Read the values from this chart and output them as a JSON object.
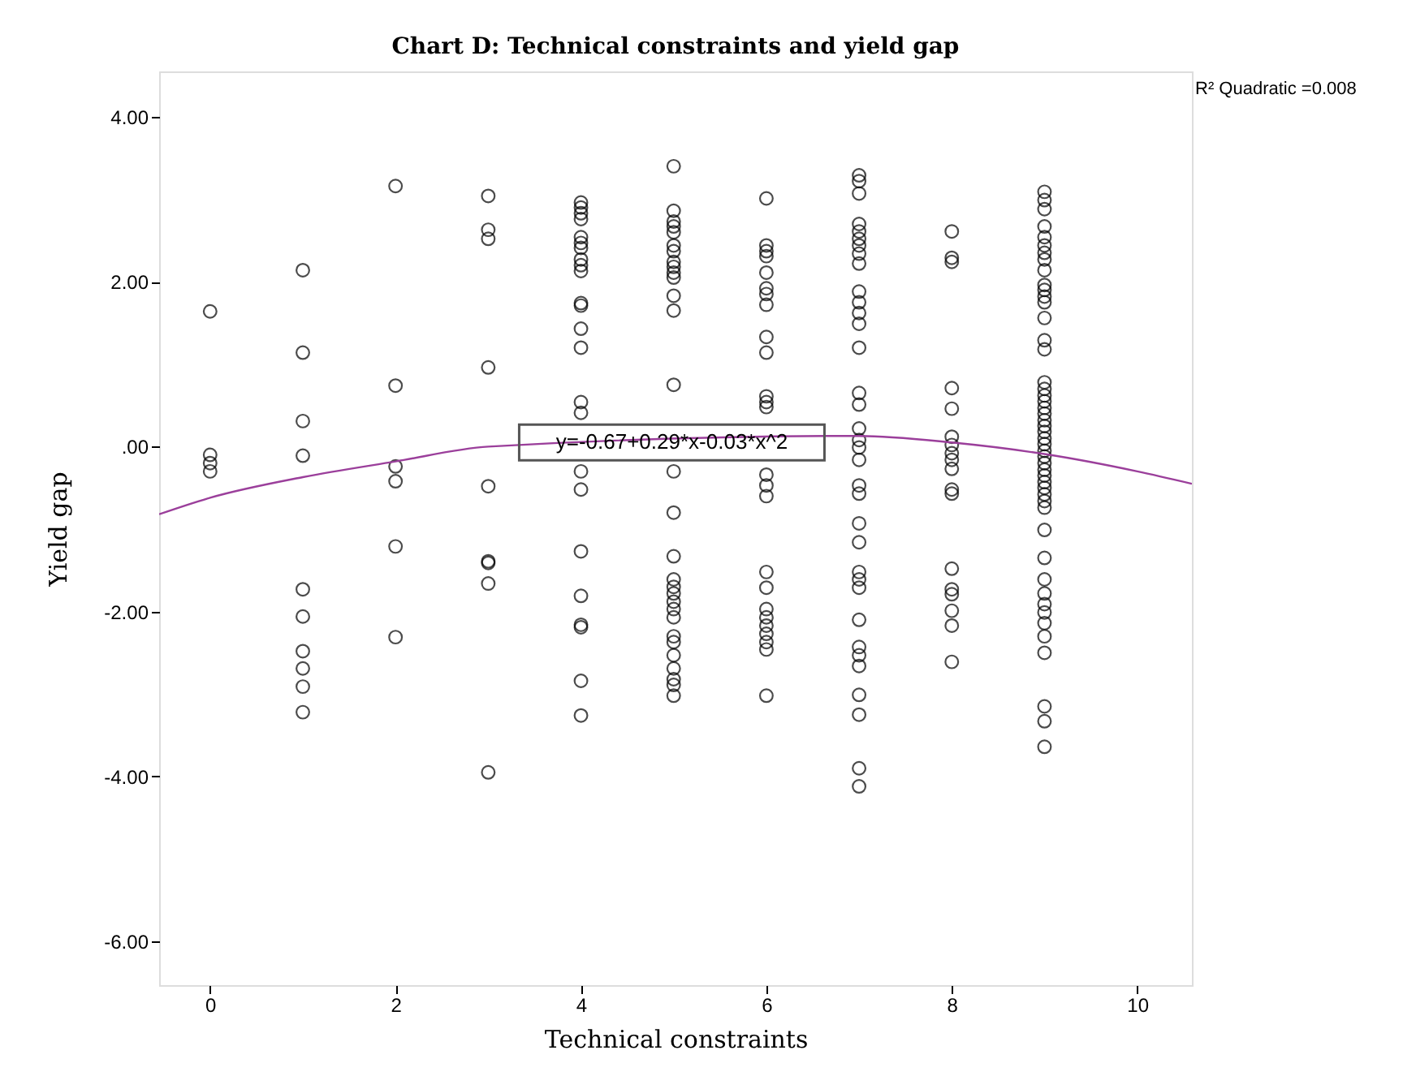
{
  "chart_data": {
    "type": "scatter",
    "title": "Chart D: Technical constraints and yield gap",
    "xlabel": "Technical constraints",
    "ylabel": "Yield gap",
    "xlim": [
      -0.55,
      10.59
    ],
    "ylim": [
      -6.53,
      4.55
    ],
    "xticks": [
      0,
      2,
      4,
      6,
      8,
      10
    ],
    "yticks": [
      {
        "value": -6,
        "label": "-6.00"
      },
      {
        "value": -4,
        "label": "-4.00"
      },
      {
        "value": -2,
        "label": "-2.00"
      },
      {
        "value": 0,
        "label": ".00"
      },
      {
        "value": 2,
        "label": "2.00"
      },
      {
        "value": 4,
        "label": "4.00"
      }
    ],
    "grid": false,
    "marker": "circle",
    "annotations": [
      {
        "text": "y=-0.67+0.29*x-0.03*x^2",
        "x": 4.98,
        "y": 0.05
      },
      "R² Quadratic =0.008"
    ],
    "series": [
      {
        "color": "#000000",
        "x": [
          0,
          0,
          0,
          0,
          1,
          1,
          1,
          1,
          1,
          1,
          1,
          1,
          1,
          1,
          2,
          2,
          2,
          2,
          2,
          2,
          3,
          3,
          3,
          3,
          3,
          3,
          3,
          3,
          3,
          4,
          4,
          4,
          4,
          4,
          4,
          4,
          4,
          4,
          4,
          4,
          4,
          4,
          4,
          4,
          4,
          4,
          4,
          4,
          4,
          4,
          4,
          4,
          4,
          5,
          5,
          5,
          5,
          5,
          5,
          5,
          5,
          5,
          5,
          5,
          5,
          5,
          5,
          5,
          5,
          5,
          5,
          5,
          5,
          5,
          5,
          5,
          5,
          5,
          5,
          5,
          5,
          5,
          5,
          6,
          6,
          6,
          6,
          6,
          6,
          6,
          6,
          6,
          6,
          6,
          6,
          6,
          6,
          6,
          6,
          6,
          6,
          6,
          6,
          6,
          6,
          6,
          6,
          6,
          7,
          7,
          7,
          7,
          7,
          7,
          7,
          7,
          7,
          7,
          7,
          7,
          7,
          7,
          7,
          7,
          7,
          7,
          7,
          7,
          7,
          7,
          7,
          7,
          7,
          7,
          7,
          7,
          7,
          7,
          7,
          7,
          7,
          7,
          7,
          8,
          8,
          8,
          8,
          8,
          8,
          8,
          8,
          8,
          8,
          8,
          8,
          8,
          8,
          8,
          8,
          8,
          8,
          9,
          9,
          9,
          9,
          9,
          9,
          9,
          9,
          9,
          9,
          9,
          9,
          9,
          9,
          9,
          9,
          9,
          9,
          9,
          9,
          9,
          9,
          9,
          9,
          9,
          9,
          9,
          9,
          9,
          9,
          9,
          9,
          9,
          9,
          9,
          9,
          9,
          9,
          9,
          9,
          9,
          9,
          9,
          9,
          9,
          9,
          9,
          9,
          9
        ],
        "values": [
          1.64,
          -0.1,
          -0.2,
          -0.3,
          2.14,
          1.14,
          0.31,
          -0.11,
          -1.73,
          -2.06,
          -2.48,
          -2.69,
          -2.91,
          -3.22,
          3.16,
          0.74,
          -0.24,
          -0.42,
          -1.21,
          -2.31,
          3.04,
          2.63,
          2.52,
          0.96,
          -0.48,
          -1.39,
          -1.41,
          -1.66,
          -3.95,
          2.96,
          2.9,
          2.83,
          2.76,
          2.54,
          2.47,
          2.41,
          2.27,
          2.2,
          2.13,
          1.74,
          1.71,
          1.43,
          1.2,
          0.54,
          0.41,
          -0.3,
          -0.52,
          -1.27,
          -1.81,
          -2.16,
          -2.19,
          -2.84,
          -3.26,
          3.4,
          2.86,
          2.73,
          2.67,
          2.6,
          2.44,
          2.37,
          2.24,
          2.18,
          2.11,
          2.05,
          1.83,
          1.65,
          0.75,
          -0.3,
          -0.8,
          -1.33,
          -1.61,
          -1.7,
          -1.78,
          -1.88,
          -1.97,
          -2.07,
          -2.3,
          -2.37,
          -2.53,
          -2.69,
          -2.82,
          -2.89,
          -3.02,
          3.01,
          2.44,
          2.37,
          2.31,
          2.11,
          1.92,
          1.85,
          1.72,
          1.33,
          1.14,
          0.61,
          0.54,
          0.48,
          -0.34,
          -0.47,
          -0.6,
          -1.52,
          -1.71,
          -1.97,
          -2.07,
          -2.17,
          -2.27,
          -2.37,
          -2.46,
          -3.02,
          3.29,
          3.22,
          3.07,
          2.7,
          2.61,
          2.52,
          2.44,
          2.34,
          2.22,
          1.88,
          1.75,
          1.62,
          1.49,
          1.2,
          0.65,
          0.51,
          0.22,
          0.08,
          -0.01,
          -0.16,
          -0.47,
          -0.57,
          -0.93,
          -1.16,
          -1.52,
          -1.61,
          -1.71,
          -2.1,
          -2.43,
          -2.53,
          -2.66,
          -3.01,
          -3.25,
          -3.9,
          -4.12,
          2.61,
          2.29,
          2.24,
          0.71,
          0.46,
          0.12,
          0.02,
          -0.08,
          -0.16,
          -0.27,
          -0.52,
          -0.57,
          -1.48,
          -1.73,
          -1.79,
          -1.99,
          -2.17,
          -2.61,
          3.09,
          2.99,
          2.88,
          2.67,
          2.54,
          2.44,
          2.35,
          2.27,
          2.14,
          1.96,
          1.9,
          1.82,
          1.75,
          1.56,
          1.29,
          1.18,
          0.78,
          0.7,
          0.62,
          0.55,
          0.47,
          0.4,
          0.32,
          0.25,
          0.18,
          0.1,
          0.03,
          -0.05,
          -0.12,
          -0.2,
          -0.28,
          -0.35,
          -0.43,
          -0.5,
          -0.58,
          -0.66,
          -0.74,
          -1.01,
          -1.35,
          -1.61,
          -1.78,
          -1.91,
          -2.01,
          -2.14,
          -2.3,
          -2.5,
          -3.15,
          -3.33,
          -3.64
        ]
      },
      {
        "type": "line",
        "marker": "none",
        "color": "#9b3f9b",
        "x": [
          -0.55,
          0,
          1,
          2,
          3,
          7,
          8,
          9,
          10,
          10.59
        ],
        "values": [
          -0.82,
          -0.62,
          -0.37,
          -0.18,
          0.0,
          0.13,
          0.05,
          -0.09,
          -0.3,
          -0.45
        ]
      }
    ]
  }
}
